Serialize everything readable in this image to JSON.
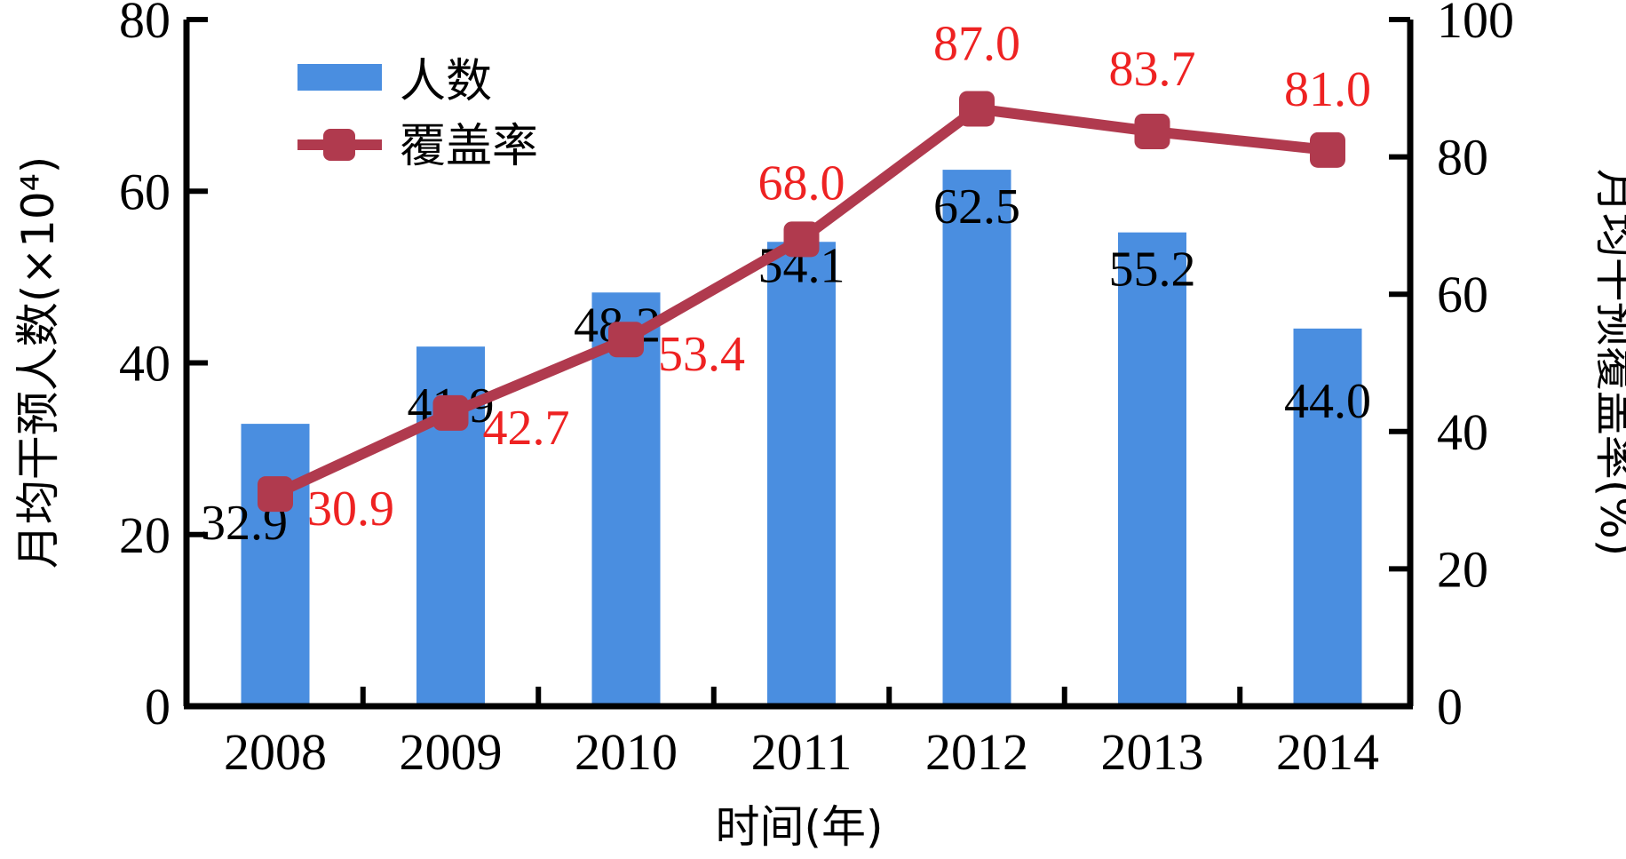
{
  "chart_data": {
    "type": "bar",
    "categories": [
      "2008",
      "2009",
      "2010",
      "2011",
      "2012",
      "2013",
      "2014"
    ],
    "series": [
      {
        "name": "人数",
        "type": "bar",
        "axis": "left",
        "color": "#4a8ee0",
        "values": [
          32.9,
          41.9,
          48.2,
          54.1,
          62.5,
          55.2,
          44.0
        ],
        "labels": [
          "32.9",
          "41.9",
          "48.2",
          "54.1",
          "62.5",
          "55.2",
          "44.0"
        ]
      },
      {
        "name": "覆盖率",
        "type": "line",
        "axis": "right",
        "color": "#b03a4e",
        "label_color": "#ee2222",
        "values": [
          30.9,
          42.7,
          53.4,
          68.0,
          87.0,
          83.7,
          81.0
        ],
        "labels": [
          "30.9",
          "42.7",
          "53.4",
          "68.0",
          "87.0",
          "83.7",
          "81.0"
        ]
      }
    ],
    "xlabel": "时间(年)",
    "ylabel_left": "月均干预人数(×10⁴)",
    "ylabel_right": "月均干预覆盖率(%)",
    "ylim_left": [
      0,
      80
    ],
    "yticks_left": [
      "0",
      "20",
      "40",
      "60",
      "80"
    ],
    "ylim_right": [
      0,
      100
    ],
    "yticks_right": [
      "0",
      "20",
      "40",
      "60",
      "80",
      "100"
    ],
    "grid": false,
    "legend_position": "top-left"
  }
}
